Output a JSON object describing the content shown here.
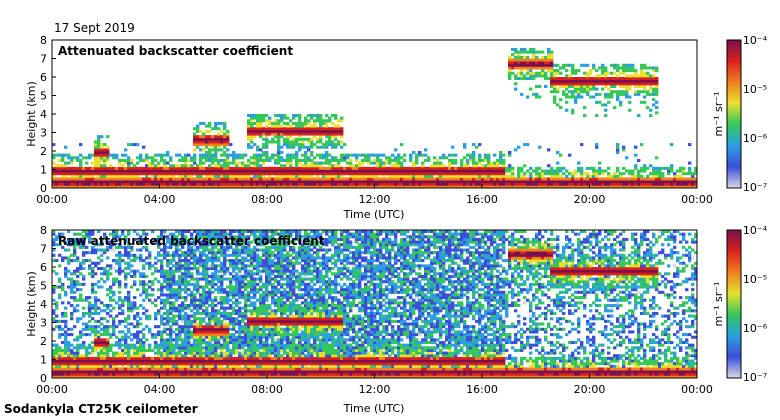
{
  "date": "17 Sept 2019",
  "instrument": "Sodankyla CT25K ceilometer",
  "colorbar": {
    "unit_label": "m⁻¹ sr⁻¹",
    "ticks": [
      "10⁻⁴",
      "10⁻⁵",
      "10⁻⁶",
      "10⁻⁷"
    ],
    "scale": "log",
    "range": [
      1e-07,
      0.0001
    ],
    "colors": [
      "#d8d8e6",
      "#3b4fd9",
      "#2b9fe0",
      "#35c75a",
      "#e8e030",
      "#f08020",
      "#d8201c",
      "#7a1050"
    ]
  },
  "chart_data": [
    {
      "type": "heatmap",
      "title": "Attenuated backscatter coefficient",
      "xlabel": "Time (UTC)",
      "ylabel": "Height (km)",
      "xlim": [
        "00:00",
        "24:00"
      ],
      "ylim": [
        0,
        8
      ],
      "x_ticks": [
        "00:00",
        "04:00",
        "08:00",
        "12:00",
        "16:00",
        "20:00",
        "00:00"
      ],
      "y_ticks": [
        "0",
        "1",
        "2",
        "3",
        "4",
        "5",
        "6",
        "7",
        "8"
      ],
      "z_scale": "log",
      "features": [
        {
          "kind": "boundary layer",
          "time_start": 0.0,
          "time_end": 24.0,
          "height_km": 0.3
        },
        {
          "kind": "low cloud",
          "time_start": 0.0,
          "time_end": 16.8,
          "height_km": 0.9
        },
        {
          "kind": "cloud",
          "time_start": 1.6,
          "time_end": 2.1,
          "height_km": 1.9
        },
        {
          "kind": "mid cloud",
          "time_start": 5.2,
          "time_end": 6.6,
          "height_km": 2.6
        },
        {
          "kind": "mid cloud",
          "time_start": 7.3,
          "time_end": 10.8,
          "height_km": 3.1
        },
        {
          "kind": "cloud",
          "time_start": 17.0,
          "time_end": 18.6,
          "height_km": 6.7
        },
        {
          "kind": "cirrus",
          "time_start": 18.5,
          "time_end": 22.5,
          "height_km": 5.8
        }
      ]
    },
    {
      "type": "heatmap",
      "title": "Raw attenuated backscatter coefficient",
      "xlabel": "Time (UTC)",
      "ylabel": "Height (km)",
      "xlim": [
        "00:00",
        "24:00"
      ],
      "ylim": [
        0,
        8
      ],
      "x_ticks": [
        "00:00",
        "04:00",
        "08:00",
        "12:00",
        "16:00",
        "20:00",
        "00:00"
      ],
      "y_ticks": [
        "0",
        "1",
        "2",
        "3",
        "4",
        "5",
        "6",
        "7",
        "8"
      ],
      "z_scale": "log",
      "features": [
        {
          "kind": "boundary layer",
          "time_start": 0.0,
          "time_end": 24.0,
          "height_km": 0.3
        },
        {
          "kind": "low cloud",
          "time_start": 0.0,
          "time_end": 16.8,
          "height_km": 0.9
        },
        {
          "kind": "cloud",
          "time_start": 1.6,
          "time_end": 2.1,
          "height_km": 1.9
        },
        {
          "kind": "mid cloud",
          "time_start": 5.2,
          "time_end": 6.6,
          "height_km": 2.6
        },
        {
          "kind": "mid cloud",
          "time_start": 7.3,
          "time_end": 10.8,
          "height_km": 3.1
        },
        {
          "kind": "cloud",
          "time_start": 17.0,
          "time_end": 18.6,
          "height_km": 6.7
        },
        {
          "kind": "cirrus",
          "time_start": 18.5,
          "time_end": 22.5,
          "height_km": 5.8
        }
      ]
    }
  ]
}
